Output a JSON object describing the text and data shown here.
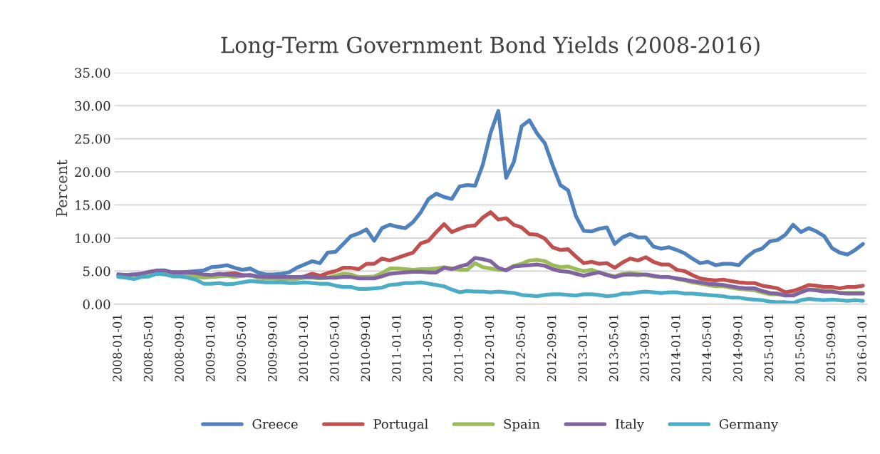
{
  "chart_data": {
    "type": "line",
    "title": "Long-Term Government Bond Yields (2008-2016)",
    "ylabel": "Percent",
    "categories": [
      "2008-01-01",
      null,
      null,
      null,
      "2008-05-01",
      null,
      null,
      null,
      "2008-09-01",
      null,
      null,
      null,
      "2009-01-01",
      null,
      null,
      null,
      "2009-05-01",
      null,
      null,
      null,
      "2009-09-01",
      null,
      null,
      null,
      "2010-01-01",
      null,
      null,
      null,
      "2010-05-01",
      null,
      null,
      null,
      "2010-09-01",
      null,
      null,
      null,
      "2011-01-01",
      null,
      null,
      null,
      "2011-05-01",
      null,
      null,
      null,
      "2011-09-01",
      null,
      null,
      null,
      "2012-01-01",
      null,
      null,
      null,
      "2012-05-01",
      null,
      null,
      null,
      "2012-09-01",
      null,
      null,
      null,
      "2013-01-01",
      null,
      null,
      null,
      "2013-05-01",
      null,
      null,
      null,
      "2013-09-01",
      null,
      null,
      null,
      "2014-01-01",
      null,
      null,
      null,
      "2014-05-01",
      null,
      null,
      null,
      "2014-09-01",
      null,
      null,
      null,
      "2015-01-01",
      null,
      null,
      null,
      "2015-05-01",
      null,
      null,
      null,
      "2015-09-01",
      null,
      null,
      null,
      "2016-01-01"
    ],
    "series": [
      {
        "name": "Greece",
        "color": "#4f81bd",
        "values": [
          4.5,
          4.4,
          4.5,
          4.6,
          4.8,
          5.0,
          5.1,
          4.8,
          4.8,
          4.9,
          5.0,
          5.1,
          5.6,
          5.7,
          5.9,
          5.5,
          5.2,
          5.4,
          4.8,
          4.5,
          4.5,
          4.6,
          4.8,
          5.5,
          6.0,
          6.5,
          6.2,
          7.8,
          7.9,
          9.1,
          10.3,
          10.7,
          11.3,
          9.6,
          11.5,
          12.0,
          11.7,
          11.5,
          12.4,
          13.9,
          15.9,
          16.7,
          16.2,
          15.9,
          17.8,
          18.0,
          17.9,
          21.1,
          25.9,
          29.2,
          19.1,
          21.5,
          26.9,
          27.8,
          25.8,
          24.3,
          21.0,
          18.0,
          17.2,
          13.3,
          11.1,
          11.0,
          11.4,
          11.6,
          9.1,
          10.1,
          10.6,
          10.1,
          10.1,
          8.7,
          8.4,
          8.6,
          8.2,
          7.7,
          6.9,
          6.2,
          6.4,
          5.9,
          6.1,
          6.1,
          5.9,
          7.1,
          8.0,
          8.4,
          9.5,
          9.7,
          10.5,
          12.0,
          10.9,
          11.5,
          11.0,
          10.3,
          8.5,
          7.8,
          7.5,
          8.2,
          9.1
        ]
      },
      {
        "name": "Portugal",
        "color": "#c0504d",
        "values": [
          null,
          null,
          null,
          null,
          null,
          null,
          null,
          null,
          null,
          null,
          null,
          null,
          null,
          4.4,
          4.6,
          4.7,
          4.4,
          4.3,
          4.2,
          4.0,
          4.0,
          4.0,
          4.0,
          4.0,
          4.2,
          4.6,
          4.3,
          4.7,
          5.0,
          5.5,
          5.5,
          5.3,
          6.1,
          6.1,
          6.9,
          6.6,
          7.0,
          7.4,
          7.8,
          9.2,
          9.6,
          10.9,
          12.1,
          10.9,
          11.4,
          11.8,
          11.9,
          13.1,
          13.9,
          12.8,
          13.0,
          12.0,
          11.6,
          10.6,
          10.5,
          9.9,
          8.6,
          8.2,
          8.3,
          7.2,
          6.2,
          6.4,
          6.1,
          6.2,
          5.5,
          6.3,
          6.9,
          6.6,
          7.1,
          6.4,
          6.0,
          6.0,
          5.2,
          5.0,
          4.4,
          3.9,
          3.7,
          3.6,
          3.7,
          3.5,
          3.3,
          3.2,
          3.2,
          2.8,
          2.6,
          2.4,
          1.8,
          2.0,
          2.4,
          2.9,
          2.8,
          2.6,
          2.6,
          2.4,
          2.6,
          2.6,
          2.8
        ]
      },
      {
        "name": "Spain",
        "color": "#9bbb59",
        "values": [
          4.2,
          4.3,
          4.4,
          4.6,
          4.8,
          5.0,
          5.0,
          4.7,
          4.6,
          4.5,
          4.2,
          4.0,
          4.1,
          4.2,
          4.3,
          4.1,
          4.3,
          4.4,
          4.0,
          3.9,
          3.9,
          3.8,
          3.8,
          3.8,
          4.0,
          4.0,
          3.9,
          4.0,
          4.3,
          4.6,
          4.5,
          4.1,
          4.1,
          4.2,
          4.7,
          5.4,
          5.4,
          5.3,
          5.2,
          5.3,
          5.3,
          5.4,
          5.6,
          5.4,
          5.2,
          5.2,
          6.2,
          5.6,
          5.4,
          5.2,
          5.2,
          5.8,
          6.1,
          6.6,
          6.7,
          6.5,
          5.9,
          5.6,
          5.7,
          5.3,
          5.0,
          5.2,
          4.8,
          4.5,
          4.2,
          4.6,
          4.7,
          4.6,
          4.4,
          4.2,
          4.1,
          4.1,
          3.8,
          3.6,
          3.3,
          3.1,
          2.9,
          2.7,
          2.7,
          2.5,
          2.3,
          2.2,
          2.1,
          1.8,
          1.5,
          1.5,
          1.3,
          1.4,
          1.8,
          2.2,
          2.2,
          2.0,
          2.0,
          1.7,
          1.7,
          1.7,
          1.7
        ]
      },
      {
        "name": "Italy",
        "color": "#8064a2",
        "values": [
          4.5,
          4.4,
          4.5,
          4.6,
          4.9,
          5.1,
          5.1,
          4.8,
          4.8,
          4.8,
          4.7,
          4.5,
          4.4,
          4.6,
          4.5,
          4.4,
          4.3,
          4.4,
          4.2,
          4.1,
          4.1,
          4.1,
          4.1,
          4.1,
          4.1,
          4.1,
          4.0,
          4.0,
          4.0,
          4.1,
          4.1,
          3.9,
          3.9,
          3.9,
          4.2,
          4.6,
          4.7,
          4.8,
          4.9,
          4.9,
          4.8,
          4.8,
          5.5,
          5.3,
          5.7,
          6.0,
          7.0,
          6.8,
          6.5,
          5.5,
          5.1,
          5.7,
          5.8,
          5.9,
          6.0,
          5.8,
          5.3,
          5.0,
          4.9,
          4.6,
          4.3,
          4.6,
          4.8,
          4.4,
          4.1,
          4.4,
          4.5,
          4.4,
          4.5,
          4.3,
          4.1,
          4.1,
          3.9,
          3.7,
          3.5,
          3.3,
          3.1,
          3.0,
          2.9,
          2.7,
          2.5,
          2.4,
          2.4,
          2.0,
          1.7,
          1.6,
          1.3,
          1.3,
          1.8,
          2.2,
          2.1,
          1.9,
          1.9,
          1.7,
          1.6,
          1.6,
          1.6
        ]
      },
      {
        "name": "Germany",
        "color": "#4bacc6",
        "values": [
          4.1,
          4.0,
          3.8,
          4.1,
          4.2,
          4.6,
          4.5,
          4.2,
          4.2,
          4.0,
          3.7,
          3.1,
          3.1,
          3.2,
          3.0,
          3.1,
          3.3,
          3.5,
          3.4,
          3.3,
          3.3,
          3.3,
          3.2,
          3.2,
          3.3,
          3.2,
          3.1,
          3.1,
          2.8,
          2.6,
          2.6,
          2.3,
          2.3,
          2.4,
          2.5,
          2.9,
          3.0,
          3.2,
          3.2,
          3.3,
          3.1,
          2.9,
          2.7,
          2.2,
          1.8,
          2.0,
          1.9,
          1.9,
          1.8,
          1.9,
          1.8,
          1.7,
          1.4,
          1.3,
          1.2,
          1.4,
          1.5,
          1.5,
          1.4,
          1.3,
          1.5,
          1.5,
          1.4,
          1.2,
          1.3,
          1.6,
          1.6,
          1.8,
          1.9,
          1.8,
          1.7,
          1.8,
          1.8,
          1.6,
          1.6,
          1.5,
          1.4,
          1.3,
          1.2,
          1.0,
          1.0,
          0.8,
          0.7,
          0.6,
          0.4,
          0.3,
          0.3,
          0.2,
          0.6,
          0.8,
          0.7,
          0.6,
          0.7,
          0.6,
          0.5,
          0.6,
          0.5
        ]
      }
    ],
    "ylim": [
      0,
      35
    ],
    "yticks": [
      {
        "value": 0,
        "label": "0.00"
      },
      {
        "value": 5,
        "label": "5.00"
      },
      {
        "value": 10,
        "label": "10.00"
      },
      {
        "value": 15,
        "label": "15.00"
      },
      {
        "value": 20,
        "label": "20.00"
      },
      {
        "value": 25,
        "label": "25.00"
      },
      {
        "value": 30,
        "label": "30.00"
      },
      {
        "value": 35,
        "label": "35.00"
      }
    ],
    "grid": "y",
    "legend": "bottom",
    "marker": "none",
    "line_style": "solid"
  }
}
